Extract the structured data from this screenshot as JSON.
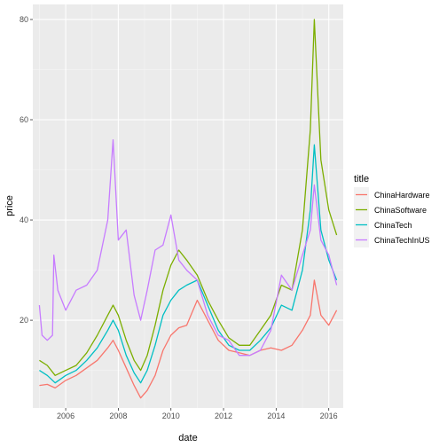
{
  "chart_data": {
    "type": "line",
    "xlabel": "date",
    "ylabel": "price",
    "xlim": [
      2004.75,
      2016.55
    ],
    "ylim": [
      2.5,
      83
    ],
    "x_ticks": [
      2006,
      2008,
      2010,
      2012,
      2014,
      2016
    ],
    "x_tick_labels": [
      "2006",
      "2008",
      "2010",
      "2012",
      "2014",
      "2016"
    ],
    "y_ticks": [
      20,
      40,
      60,
      80
    ],
    "y_tick_labels": [
      "20",
      "40",
      "60",
      "80"
    ],
    "grid": true,
    "legend_title": "title",
    "legend_position": "right",
    "series": [
      {
        "name": "ChinaHardware",
        "color": "#F8766D",
        "x": [
          2005.0,
          2005.3,
          2005.6,
          2006.0,
          2006.4,
          2006.8,
          2007.2,
          2007.6,
          2007.8,
          2008.0,
          2008.3,
          2008.6,
          2008.85,
          2009.1,
          2009.4,
          2009.7,
          2010.0,
          2010.3,
          2010.6,
          2011.0,
          2011.4,
          2011.8,
          2012.2,
          2012.6,
          2013.0,
          2013.4,
          2013.8,
          2014.2,
          2014.6,
          2015.0,
          2015.3,
          2015.45,
          2015.7,
          2016.0,
          2016.3
        ],
        "y": [
          7,
          7.2,
          6.5,
          8,
          9,
          10.5,
          12,
          14.5,
          16,
          14,
          10.5,
          7,
          4.5,
          6,
          9,
          14,
          17,
          18.5,
          19,
          24,
          20,
          16,
          14,
          13.5,
          13,
          14,
          14.5,
          14,
          15,
          18,
          21,
          28,
          21,
          19,
          22
        ]
      },
      {
        "name": "ChinaSoftware",
        "color": "#7CAE00",
        "x": [
          2005.0,
          2005.3,
          2005.6,
          2006.0,
          2006.4,
          2006.8,
          2007.2,
          2007.6,
          2007.8,
          2008.0,
          2008.3,
          2008.6,
          2008.85,
          2009.1,
          2009.4,
          2009.7,
          2010.0,
          2010.3,
          2010.6,
          2011.0,
          2011.4,
          2011.8,
          2012.2,
          2012.6,
          2013.0,
          2013.4,
          2013.8,
          2014.2,
          2014.6,
          2015.0,
          2015.3,
          2015.45,
          2015.7,
          2016.0,
          2016.3
        ],
        "y": [
          12,
          11,
          9,
          10,
          11,
          13.5,
          17,
          21,
          23,
          21,
          16,
          12,
          10,
          13,
          19,
          26,
          31,
          34,
          32,
          29,
          24,
          20,
          16.5,
          15,
          15,
          18,
          21,
          27,
          26,
          38,
          58,
          80,
          52,
          42,
          37
        ]
      },
      {
        "name": "ChinaTech",
        "color": "#00BFC4",
        "x": [
          2005.0,
          2005.3,
          2005.6,
          2006.0,
          2006.4,
          2006.8,
          2007.2,
          2007.6,
          2007.8,
          2008.0,
          2008.3,
          2008.6,
          2008.85,
          2009.1,
          2009.4,
          2009.7,
          2010.0,
          2010.3,
          2010.6,
          2011.0,
          2011.4,
          2011.8,
          2012.2,
          2012.6,
          2013.0,
          2013.4,
          2013.8,
          2014.2,
          2014.6,
          2015.0,
          2015.3,
          2015.45,
          2015.7,
          2016.0,
          2016.3
        ],
        "y": [
          10,
          9,
          7.5,
          9,
          10,
          12,
          14.5,
          18,
          20,
          18,
          13,
          9.5,
          7.5,
          10,
          15,
          21,
          24,
          26,
          27,
          28,
          23,
          18,
          15,
          14,
          14,
          16,
          18.5,
          23,
          22,
          30,
          42,
          55,
          38,
          32,
          28
        ]
      },
      {
        "name": "ChinaTechInUS",
        "color": "#C77CFF",
        "x": [
          2005.0,
          2005.1,
          2005.3,
          2005.5,
          2005.55,
          2005.7,
          2006.0,
          2006.4,
          2006.8,
          2007.2,
          2007.6,
          2007.8,
          2008.0,
          2008.3,
          2008.6,
          2008.85,
          2009.1,
          2009.4,
          2009.7,
          2010.0,
          2010.3,
          2010.6,
          2011.0,
          2011.4,
          2011.8,
          2012.2,
          2012.6,
          2013.0,
          2013.4,
          2013.8,
          2014.2,
          2014.6,
          2015.0,
          2015.3,
          2015.45,
          2015.7,
          2016.0,
          2016.3
        ],
        "y": [
          23,
          17,
          16,
          17,
          33,
          26,
          22,
          26,
          27,
          30,
          40,
          56,
          36,
          38,
          25,
          20,
          26,
          34,
          35,
          41,
          32,
          30,
          28,
          21,
          17,
          16,
          13,
          13,
          14,
          18,
          29,
          26,
          33,
          38,
          47,
          36,
          33,
          27
        ]
      }
    ]
  }
}
